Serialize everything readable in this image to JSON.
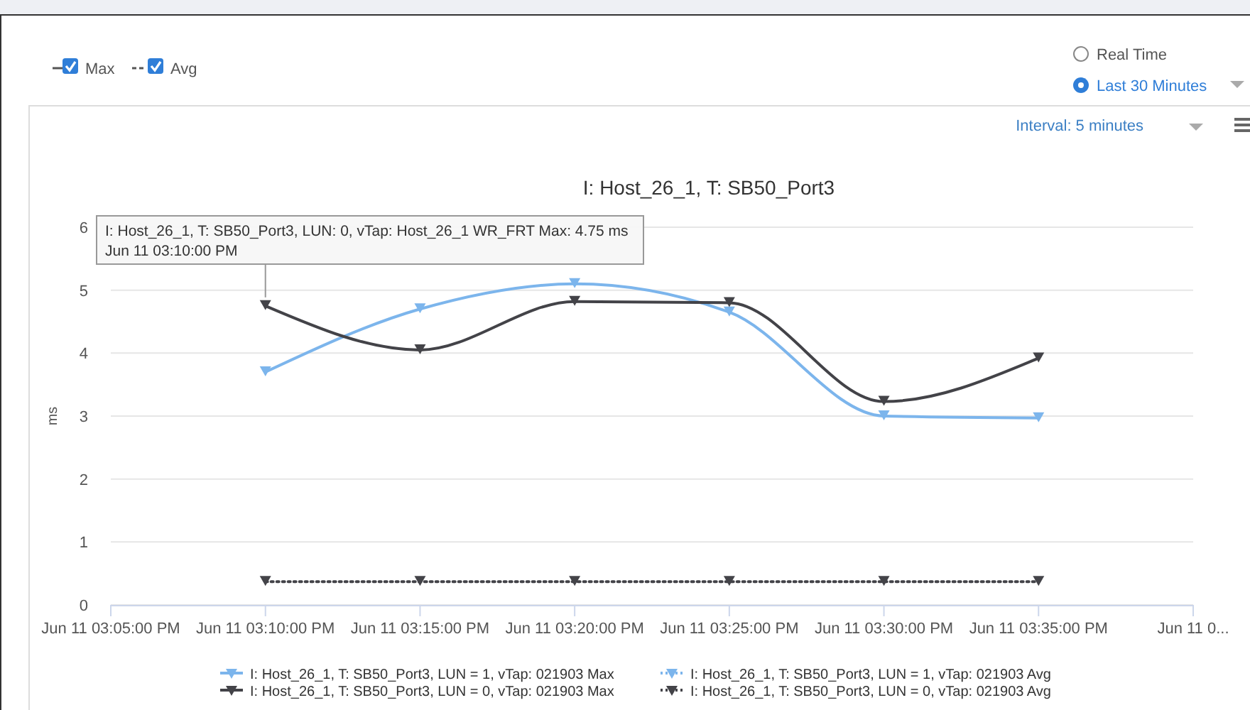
{
  "chart_data": {
    "type": "line",
    "title": "I: Host_26_1, T: SB50_Port3",
    "ylabel": "ms",
    "categories": [
      "Jun 11 03:05:00 PM",
      "Jun 11 03:10:00 PM",
      "Jun 11 03:15:00 PM",
      "Jun 11 03:20:00 PM",
      "Jun 11 03:25:00 PM",
      "Jun 11 03:30:00 PM",
      "Jun 11 03:35:00 PM",
      "Jun 11 0..."
    ],
    "ylim": [
      0,
      6
    ],
    "yticks": [
      0,
      1,
      2,
      3,
      4,
      5,
      6
    ],
    "grid": "y",
    "legend": "bottom",
    "marker": "triangle",
    "series": [
      {
        "name": "I: Host_26_1, T: SB50_Port3, LUN = 1, vTap: 021903 Max",
        "color": "#7cb5ec",
        "line_style": "solid",
        "values": [
          null,
          3.7,
          4.7,
          5.1,
          4.65,
          3.0,
          2.97,
          null
        ]
      },
      {
        "name": "I: Host_26_1, T: SB50_Port3, LUN = 0, vTap: 021903 Max",
        "color": "#434348",
        "line_style": "solid",
        "values": [
          null,
          4.75,
          4.05,
          4.82,
          4.8,
          3.23,
          3.92,
          null
        ]
      },
      {
        "name": "I: Host_26_1, T: SB50_Port3, LUN = 1, vTap: 021903 Avg",
        "color": "#7cb5ec",
        "line_style": "dotted",
        "values": [
          null,
          null,
          null,
          null,
          null,
          null,
          null,
          null
        ]
      },
      {
        "name": "I: Host_26_1, T: SB50_Port3, LUN = 0, vTap: 021903 Avg",
        "color": "#434348",
        "line_style": "dotted",
        "values": [
          null,
          0.37,
          0.37,
          0.37,
          0.37,
          0.37,
          0.37,
          null
        ]
      }
    ],
    "annotations": [
      {
        "text": "I: Host_26_1, T: SB50_Port3, LUN: 0, vTap: Host_26_1 WR_FRT Max: 4.75 ms\nJun 11 03:10:00 PM",
        "x": "Jun 11 03:10:00 PM",
        "y": 4.75
      },
      "Max",
      "Avg",
      "Real Time",
      "Last 30 Minutes",
      "Interval: 5 minutes"
    ]
  }
}
